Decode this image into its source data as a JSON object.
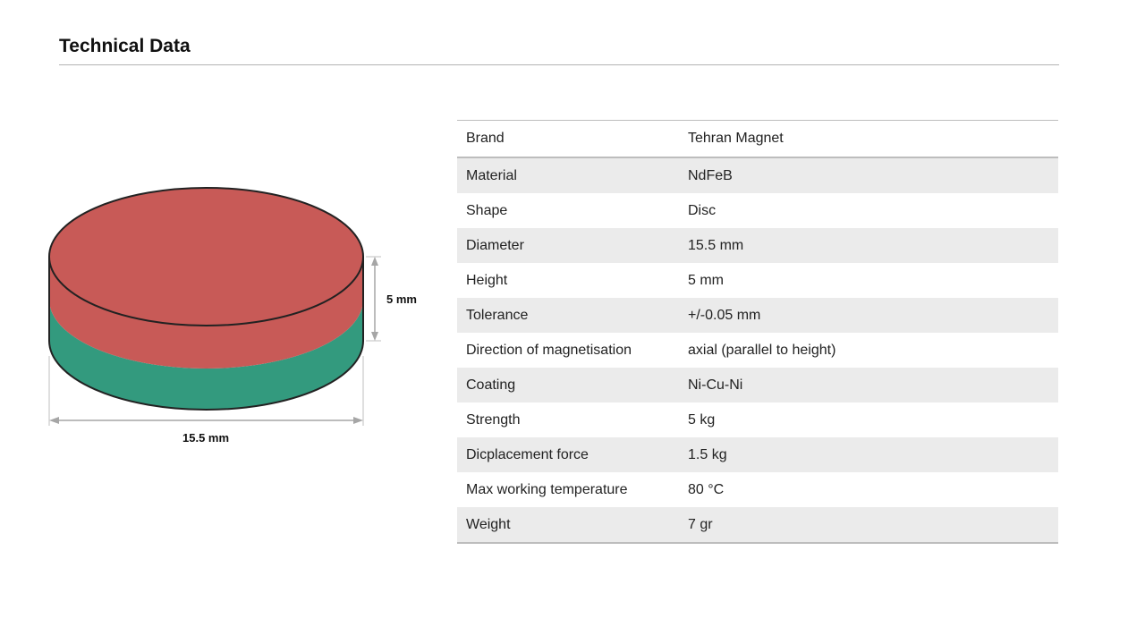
{
  "page": {
    "title": "Technical Data"
  },
  "figure": {
    "height_label": "5 mm",
    "diameter_label": "15.5 mm",
    "colors": {
      "north_pole": "#c85a57",
      "south_pole": "#339a7e",
      "outline": "#222222",
      "dimension_line": "#a6a6a6"
    }
  },
  "specs": {
    "rows": [
      {
        "label": "Brand",
        "value": "Tehran Magnet"
      },
      {
        "label": "Material",
        "value": "NdFeB"
      },
      {
        "label": "Shape",
        "value": "Disc"
      },
      {
        "label": "Diameter",
        "value": "15.5 mm"
      },
      {
        "label": "Height",
        "value": "5 mm"
      },
      {
        "label": "Tolerance",
        "value": "+/-0.05 mm"
      },
      {
        "label": "Direction of magnetisation",
        "value": "axial (parallel to height)"
      },
      {
        "label": "Coating",
        "value": "Ni-Cu-Ni"
      },
      {
        "label": "Strength",
        "value": "5 kg"
      },
      {
        "label": "Dicplacement force",
        "value": "1.5 kg"
      },
      {
        "label": "Max working temperature",
        "value": "80 °C"
      },
      {
        "label": "Weight",
        "value": "7 gr"
      }
    ]
  }
}
